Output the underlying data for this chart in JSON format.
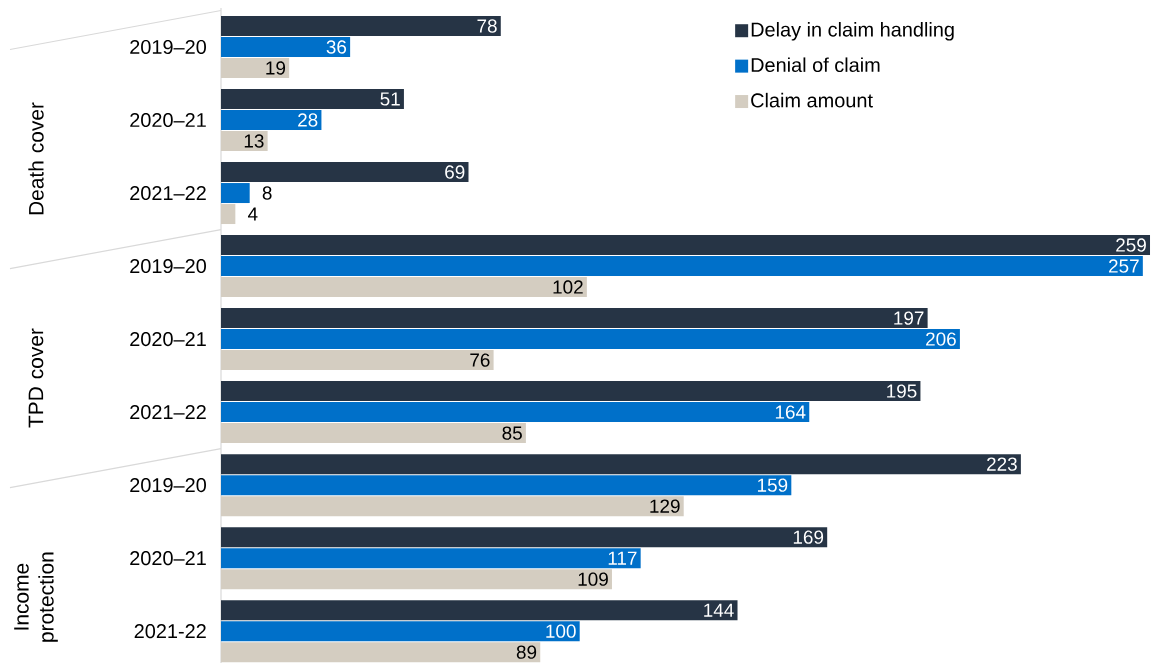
{
  "chart_data": {
    "type": "bar",
    "orientation": "horizontal",
    "data_labels": true,
    "legend": "top right",
    "categories": [
      "2019–20",
      "2020–21",
      "2021–22",
      "2019–20",
      "2020–21",
      "2021–22",
      "2019–20",
      "2020–21",
      "2021-22"
    ],
    "annotations": [
      "Death cover",
      "TPD cover",
      "Income protection"
    ],
    "series": [
      {
        "name": "Delay in claim handling",
        "color": "#263445",
        "values": [
          78,
          51,
          69,
          259,
          197,
          195,
          223,
          169,
          144
        ]
      },
      {
        "name": "Denial of claim",
        "color": "#0070c9",
        "values": [
          36,
          28,
          8,
          257,
          206,
          164,
          159,
          117,
          100
        ]
      },
      {
        "name": "Claim amount",
        "color": "#d4cdc1",
        "values": [
          19,
          13,
          4,
          102,
          76,
          85,
          129,
          109,
          89
        ]
      }
    ]
  }
}
